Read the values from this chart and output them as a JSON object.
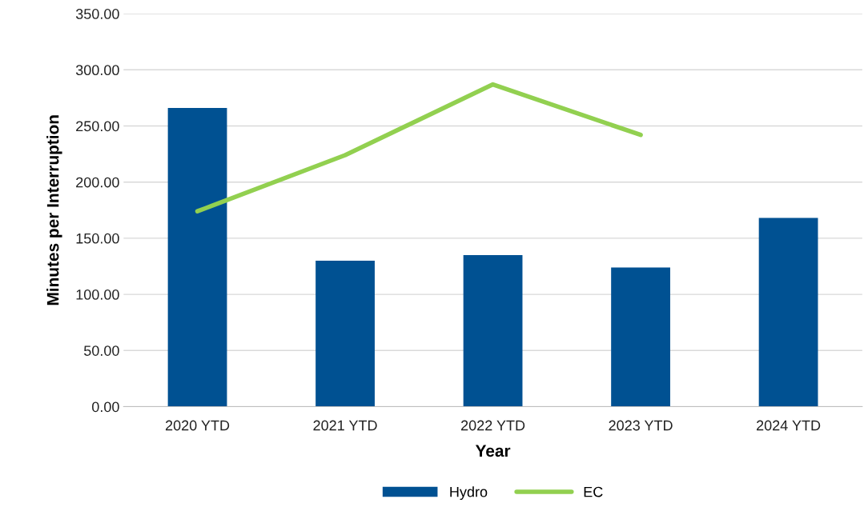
{
  "chart_data": {
    "type": "bar",
    "xlabel": "Year",
    "ylabel": "Minutes per Interruption",
    "categories": [
      "2020 YTD",
      "2021 YTD",
      "2022 YTD",
      "2023 YTD",
      "2024 YTD"
    ],
    "series": [
      {
        "name": "Hydro",
        "color": "#005192",
        "values": [
          266,
          130,
          135,
          124,
          168
        ]
      },
      {
        "name": "EC",
        "type": "line",
        "color": "#92d050",
        "values": [
          174,
          224,
          287,
          242,
          null
        ]
      }
    ],
    "ylim": [
      0,
      350
    ],
    "yticks": [
      {
        "value": 0,
        "label": "0.00"
      },
      {
        "value": 50,
        "label": "50.00"
      },
      {
        "value": 100,
        "label": "100.00"
      },
      {
        "value": 150,
        "label": "150.00"
      },
      {
        "value": 200,
        "label": "200.00"
      },
      {
        "value": 250,
        "label": "250.00"
      },
      {
        "value": 300,
        "label": "300.00"
      },
      {
        "value": 350,
        "label": "350.00"
      }
    ],
    "grid": "y",
    "legend": "bottom",
    "marker": "none",
    "line_style": "solid"
  }
}
